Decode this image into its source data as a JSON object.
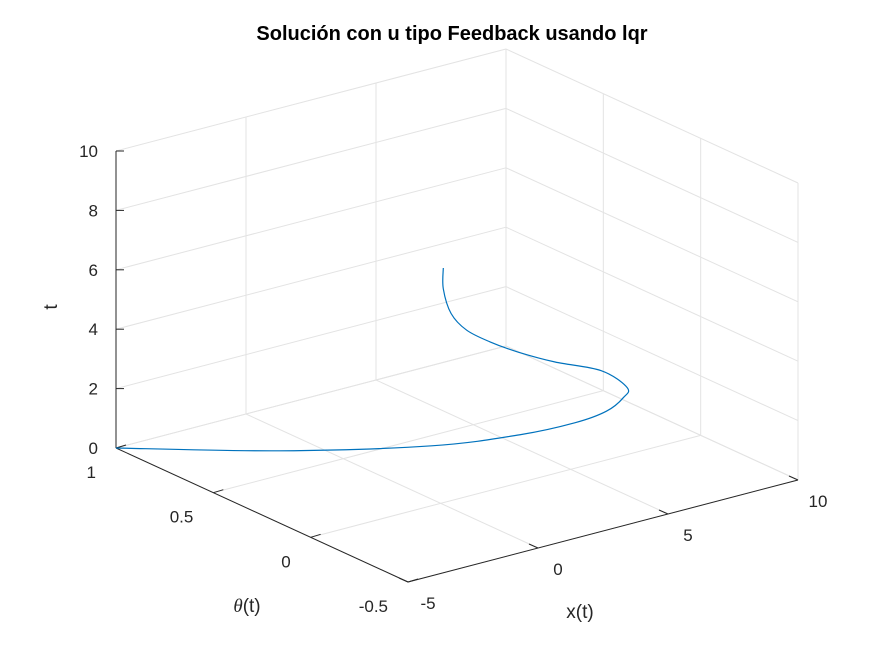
{
  "chart_data": {
    "type": "line3d",
    "title": "Solución con u tipo Feedback usando lqr",
    "xlabel": "x(t)",
    "ylabel_symbol": "θ",
    "ylabel_suffix": "(t)",
    "zlabel": "t",
    "xlim": [
      -5,
      10
    ],
    "ylim": [
      -0.5,
      1
    ],
    "zlim": [
      0,
      10
    ],
    "xticks": [
      -5,
      0,
      5,
      10
    ],
    "xtick_labels": [
      "-5",
      "0",
      "5",
      "10"
    ],
    "yticks": [
      -0.5,
      0,
      0.5,
      1
    ],
    "ytick_labels": [
      "-0.5",
      "0",
      "0.5",
      "1"
    ],
    "zticks": [
      0,
      2,
      4,
      6,
      8,
      10
    ],
    "ztick_labels": [
      "0",
      "2",
      "4",
      "6",
      "8",
      "10"
    ],
    "grid": true,
    "line_color": "#0072bd",
    "series": [
      {
        "x": [
          -5.0,
          -1.6,
          1.9,
          4.2,
          5.7,
          6.6,
          7.1,
          7.1,
          6.1,
          4.4,
          3.0,
          1.9,
          1.0,
          0.4,
          0.1,
          0.1
        ],
        "y": [
          1.0,
          0.61,
          0.3,
          0.15,
          0.07,
          0.03,
          0.01,
          -0.01,
          -0.01,
          0.0,
          0.0,
          0.0,
          0.0,
          0.0,
          0.0,
          0.0
        ],
        "z": [
          0.0,
          0.3,
          0.6,
          0.9,
          1.2,
          1.5,
          1.9,
          2.3,
          3.1,
          3.75,
          4.4,
          5.0,
          5.6,
          6.3,
          7.2,
          7.9
        ]
      }
    ]
  }
}
